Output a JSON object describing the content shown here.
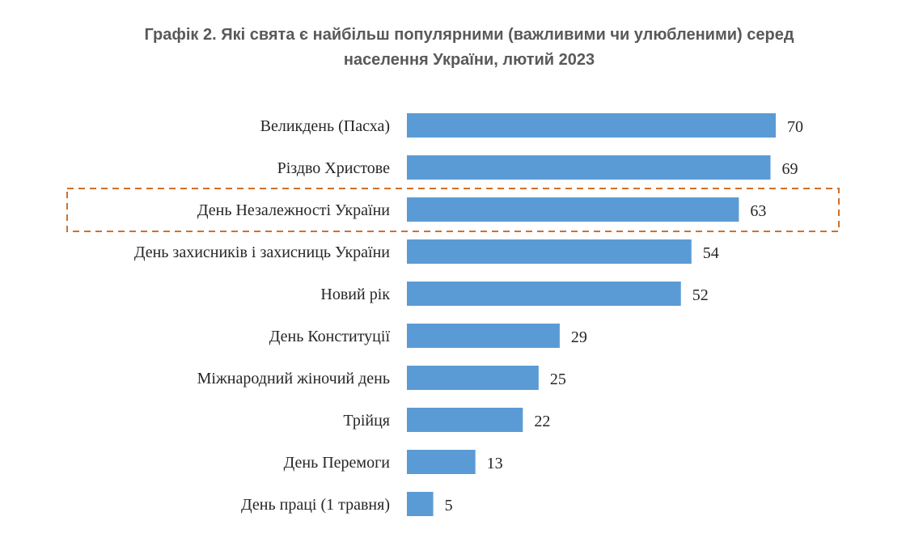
{
  "chart_data": {
    "type": "bar",
    "orientation": "horizontal",
    "title_line1": "Графік 2.  Які свята є найбільш популярними (важливими чи улюбленими) серед",
    "title_line2": "населення України, лютий 2023",
    "categories": [
      "Великдень (Пасха)",
      "Різдво Христове",
      "День Незалежності України",
      "День захисників і захисниць України",
      "Новий рік",
      "День Конституції",
      "Міжнародний жіночий день",
      "Трійця",
      "День Перемоги",
      "День праці (1 травня)"
    ],
    "values": [
      70,
      69,
      63,
      54,
      52,
      29,
      25,
      22,
      13,
      5
    ],
    "highlighted_category": "День Незалежності України",
    "xlabel": "",
    "ylabel": "",
    "grid": false,
    "legend": "none",
    "colors": {
      "bar": "#5B9BD5",
      "highlight_box": "#D0702A",
      "title": "#595959",
      "text": "#262626"
    }
  }
}
